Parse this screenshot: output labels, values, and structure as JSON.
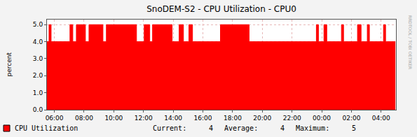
{
  "chart_data": {
    "type": "area",
    "title": "SnoDEM-S2 - CPU Utilization - CPU0",
    "y_label": "percent",
    "x": [
      5.5,
      5.64,
      5.78,
      7.05,
      7.24,
      7.48,
      8.09,
      8.33,
      9.27,
      9.5,
      11.53,
      12.05,
      12.42,
      12.61,
      13.93,
      14.4,
      14.69,
      15.06,
      15.3,
      17.18,
      19.11,
      23.64,
      23.78,
      24.15,
      24.34,
      25.33,
      25.47,
      26.41,
      26.65,
      27.07,
      27.21,
      28.16,
      28.3,
      28.96
    ],
    "series": [
      {
        "name": "CPU Utilization",
        "color": "#ff0000",
        "line_style": "step",
        "values": [
          4,
          5,
          4,
          5,
          4,
          5,
          4,
          5,
          4,
          5,
          4,
          5,
          4,
          5,
          4,
          5,
          4,
          5,
          4,
          5,
          4,
          5,
          4,
          5,
          4,
          5,
          4,
          5,
          4,
          5,
          4,
          5,
          4,
          4
        ]
      }
    ],
    "xlim": [
      5.5,
      29
    ],
    "xticks": [
      {
        "value": 6,
        "label": "06:00"
      },
      {
        "value": 8,
        "label": "08:00"
      },
      {
        "value": 10,
        "label": "10:00"
      },
      {
        "value": 12,
        "label": "12:00"
      },
      {
        "value": 14,
        "label": "14:00"
      },
      {
        "value": 16,
        "label": "16:00"
      },
      {
        "value": 18,
        "label": "18:00"
      },
      {
        "value": 20,
        "label": "20:00"
      },
      {
        "value": 22,
        "label": "22:00"
      },
      {
        "value": 24,
        "label": "00:00"
      },
      {
        "value": 26,
        "label": "02:00"
      },
      {
        "value": 28,
        "label": "04:00"
      }
    ],
    "ylim": [
      0,
      5.3
    ],
    "yticks": [
      {
        "value": 0,
        "label": "0.0"
      },
      {
        "value": 1,
        "label": "1.0"
      },
      {
        "value": 2,
        "label": "2.0"
      },
      {
        "value": 3,
        "label": "3.0"
      },
      {
        "value": 4,
        "label": "4.0"
      },
      {
        "value": 5,
        "label": "5.0"
      }
    ],
    "grid": true,
    "legend": "bottom",
    "legend_stats": [
      {
        "label": "Current:",
        "value": 4
      },
      {
        "label": "Average:",
        "value": 4
      },
      {
        "label": "Maximum:",
        "value": 5
      }
    ],
    "watermark": "RRDTOOL / TOBI OETIKER"
  }
}
